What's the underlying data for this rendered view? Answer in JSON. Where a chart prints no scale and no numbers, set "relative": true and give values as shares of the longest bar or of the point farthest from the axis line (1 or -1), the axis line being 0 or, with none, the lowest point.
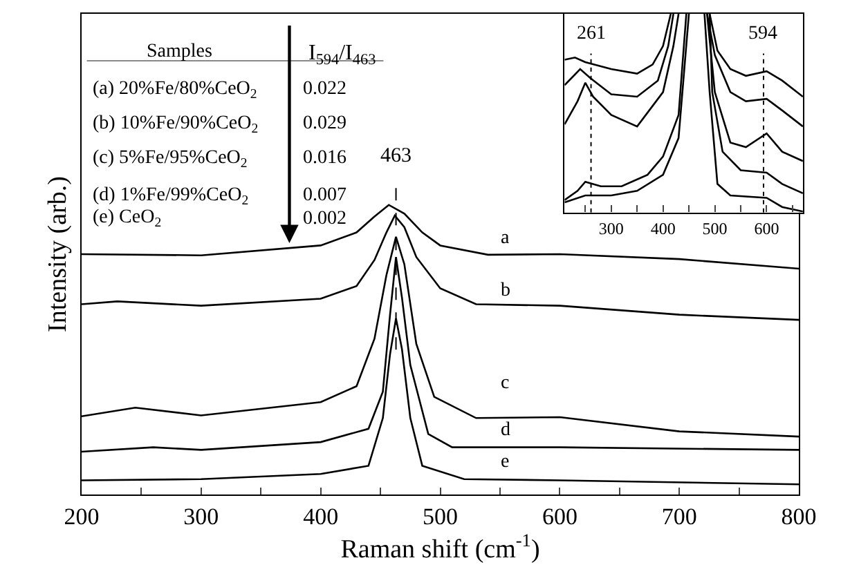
{
  "chart_data": [
    {
      "type": "line",
      "relative": true,
      "xlabel": "Raman shift (cm$^{-1}$)",
      "ylabel": "Intensity (arb.)",
      "xlim": [
        200,
        800
      ],
      "xticks": [
        200,
        {
          "value": 250,
          "label": null
        },
        300,
        {
          "value": 350,
          "label": null
        },
        400,
        {
          "value": 450,
          "label": null
        },
        500,
        {
          "value": 550,
          "label": null
        },
        600,
        {
          "value": 650,
          "label": null
        },
        700,
        {
          "value": 750,
          "label": null
        },
        800
      ],
      "marker": "none",
      "line_style": "solid",
      "series": [
        {
          "color": "#000000",
          "x": [
            200,
            300,
            400,
            430,
            445,
            457,
            470,
            485,
            500,
            540,
            600,
            700,
            800
          ],
          "values": [
            0.83,
            0.826,
            0.86,
            0.905,
            0.96,
            1.0,
            0.97,
            0.905,
            0.86,
            0.828,
            0.83,
            0.813,
            0.78
          ]
        },
        {
          "color": "#000000",
          "x": [
            200,
            230,
            300,
            400,
            430,
            445,
            455,
            462,
            470,
            480,
            500,
            530,
            600,
            700,
            800
          ],
          "values": [
            0.657,
            0.667,
            0.652,
            0.676,
            0.72,
            0.81,
            0.905,
            0.963,
            0.923,
            0.82,
            0.712,
            0.657,
            0.652,
            0.621,
            0.603
          ]
        },
        {
          "color": "#000000",
          "x": [
            200,
            245,
            300,
            400,
            430,
            445,
            455,
            463,
            470,
            480,
            495,
            530,
            600,
            700,
            800
          ],
          "values": [
            0.27,
            0.3,
            0.273,
            0.319,
            0.374,
            0.538,
            0.758,
            0.89,
            0.795,
            0.52,
            0.337,
            0.264,
            0.267,
            0.218,
            0.2
          ]
        },
        {
          "color": "#000000",
          "x": [
            200,
            260,
            300,
            400,
            440,
            452,
            458,
            463,
            468,
            475,
            490,
            510,
            600,
            800
          ],
          "values": [
            0.148,
            0.163,
            0.154,
            0.181,
            0.227,
            0.355,
            0.62,
            0.82,
            0.68,
            0.447,
            0.209,
            0.163,
            0.163,
            0.154
          ]
        },
        {
          "color": "#000000",
          "x": [
            200,
            300,
            400,
            440,
            452,
            458,
            463,
            468,
            475,
            485,
            520,
            600,
            800
          ],
          "values": [
            0.049,
            0.053,
            0.071,
            0.099,
            0.264,
            0.484,
            0.608,
            0.502,
            0.264,
            0.099,
            0.053,
            0.049,
            0.035
          ]
        }
      ],
      "ref_lines": [
        {
          "axis": "x",
          "value": 463,
          "label": "463",
          "color": "#000000",
          "line_style": "dashed"
        }
      ],
      "annotations": [
        "a",
        "b",
        "c",
        "d",
        "e",
        "Samples",
        "I$_{594}$/I$_{463}$",
        "(a) 20%Fe/80%CeO$_{2}$",
        "0.022",
        "(b) 10%Fe/90%CeO$_{2}$",
        "0.029",
        "(c) 5%Fe/95%CeO$_{2}$",
        "0.016",
        "(d) 1%Fe/99%CeO$_{2}$",
        "0.007",
        "(e) CeO$_{2}$",
        "0.002"
      ]
    },
    {
      "type": "line",
      "relative": true,
      "xlim": [
        210,
        670
      ],
      "tick_labels": "x",
      "xticks": [
        {
          "value": 250,
          "label": null
        },
        300,
        {
          "value": 350,
          "label": null
        },
        400,
        {
          "value": 450,
          "label": null
        },
        500,
        {
          "value": 550,
          "label": null
        },
        600,
        {
          "value": 650,
          "label": null
        }
      ],
      "marker": "none",
      "line_style": "solid",
      "series": [
        {
          "color": "#000000",
          "x": [
            210,
            230,
            250,
            300,
            350,
            380,
            400,
            415,
            450,
            490,
            505,
            530,
            560,
            600,
            630,
            670
          ],
          "values": [
            0.769,
            0.78,
            0.757,
            0.722,
            0.699,
            0.745,
            0.838,
            1.0,
            null,
            1.0,
            0.815,
            0.722,
            0.688,
            0.711,
            0.664,
            0.583
          ]
        },
        {
          "color": "#000000",
          "x": [
            210,
            240,
            260,
            300,
            350,
            390,
            410,
            420,
            450,
            485,
            500,
            530,
            560,
            600,
            630,
            670
          ],
          "values": [
            0.641,
            0.722,
            0.676,
            0.595,
            0.583,
            0.664,
            0.838,
            1.0,
            null,
            1.0,
            0.792,
            0.606,
            0.56,
            0.572,
            0.514,
            0.433
          ]
        },
        {
          "color": "#000000",
          "x": [
            210,
            235,
            250,
            265,
            300,
            350,
            400,
            420,
            430,
            450,
            485,
            500,
            530,
            560,
            600,
            630,
            670
          ],
          "values": [
            0.444,
            0.56,
            0.653,
            0.583,
            0.491,
            0.433,
            0.606,
            0.838,
            1.0,
            null,
            1.0,
            0.606,
            0.352,
            0.329,
            0.398,
            0.306,
            0.259
          ]
        },
        {
          "color": "#000000",
          "x": [
            210,
            235,
            250,
            280,
            320,
            370,
            400,
            430,
            445,
            470,
            490,
            495,
            515,
            550,
            600,
            630,
            670
          ],
          "values": [
            0.063,
            0.109,
            0.155,
            0.132,
            0.132,
            0.19,
            0.282,
            0.491,
            1.0,
            null,
            1.0,
            0.606,
            0.306,
            0.213,
            0.201,
            0.144,
            0.097
          ]
        },
        {
          "color": "#000000",
          "x": [
            210,
            250,
            300,
            350,
            400,
            430,
            450,
            465,
            480,
            490,
            505,
            530,
            600,
            630,
            670
          ],
          "values": [
            0.051,
            0.086,
            0.086,
            0.109,
            0.19,
            0.375,
            1.0,
            null,
            1.0,
            0.606,
            0.144,
            0.086,
            0.074,
            0.028,
            0.005
          ]
        }
      ],
      "ref_lines": [
        {
          "axis": "x",
          "value": 261,
          "label": "261",
          "color": "#000000",
          "line_style": "dotted"
        },
        {
          "axis": "x",
          "value": 594,
          "label": "594",
          "color": "#000000",
          "line_style": "dotted"
        }
      ]
    }
  ]
}
